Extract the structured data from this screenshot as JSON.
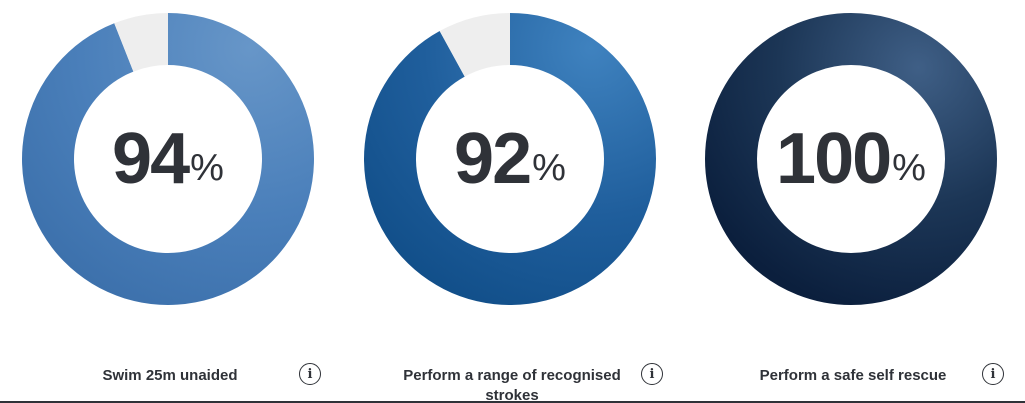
{
  "chart_data": [
    {
      "type": "pie",
      "variant": "donut",
      "value": 94,
      "max": 100,
      "display_number": "94",
      "display_unit": "%",
      "caption": "Swim 25m unaided",
      "colors": {
        "light": "#6796c8",
        "mid": "#4a7fba",
        "dark": "#3a6ea9",
        "remainder": "#eeeeee"
      }
    },
    {
      "type": "pie",
      "variant": "donut",
      "value": 92,
      "max": 100,
      "display_number": "92",
      "display_unit": "%",
      "caption": "Perform a range of recognised strokes",
      "colors": {
        "light": "#3f82bf",
        "mid": "#1f5e9c",
        "dark": "#0f4c86",
        "remainder": "#eeeeee"
      }
    },
    {
      "type": "pie",
      "variant": "donut",
      "value": 100,
      "max": 100,
      "display_number": "100",
      "display_unit": "%",
      "caption": "Perform a safe self rescue",
      "colors": {
        "light": "#3f5f86",
        "mid": "#1c3656",
        "dark": "#0b1f3d",
        "remainder": "#eeeeee"
      }
    }
  ],
  "info_button": {
    "glyph": "i",
    "icon": "info-icon"
  },
  "colors": {
    "text": "#2f3238",
    "background": "#ffffff"
  }
}
